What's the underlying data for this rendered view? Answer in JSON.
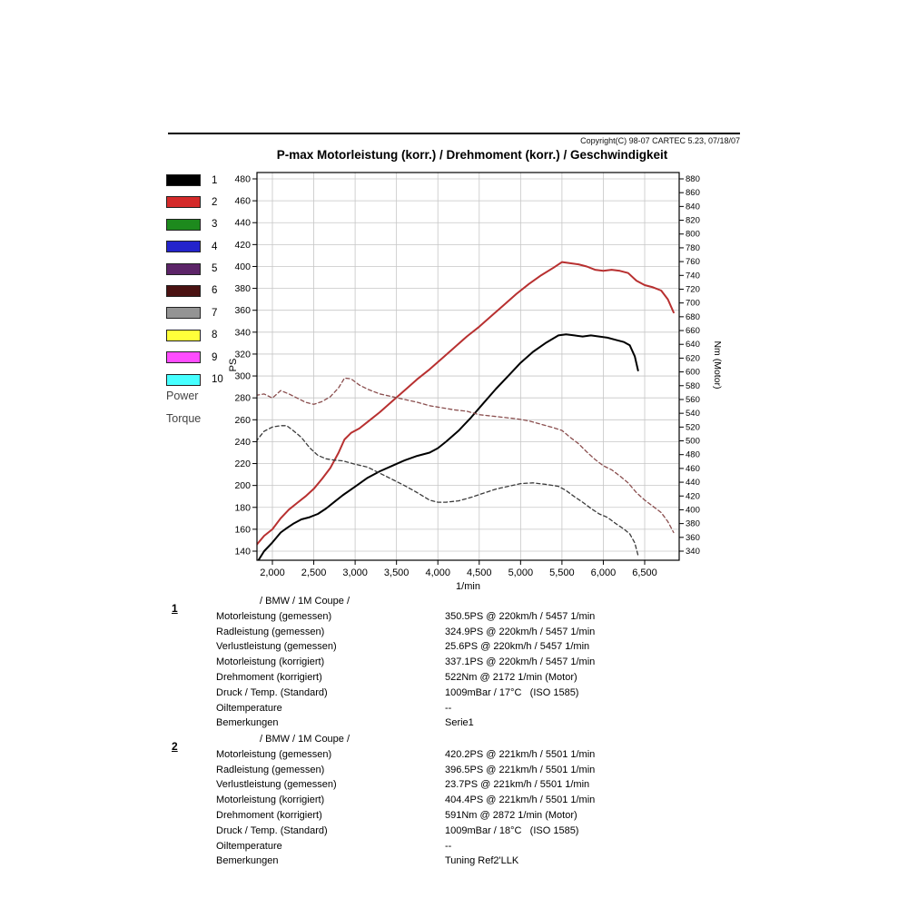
{
  "window": {
    "copyright": "Copyright(C) 98-07 CARTEC 5.23, 07/18/07",
    "title": "P-max Motorleistung (korr.) / Drehmoment (korr.) / Geschwindigkeit"
  },
  "legend": {
    "items": [
      {
        "num": "1",
        "color": "#000000"
      },
      {
        "num": "2",
        "color": "#d42a2a"
      },
      {
        "num": "3",
        "color": "#1d8a1d"
      },
      {
        "num": "4",
        "color": "#2424cc"
      },
      {
        "num": "5",
        "color": "#5c2468",
        "note": ""
      },
      {
        "num": "6",
        "color": "#4a1212"
      },
      {
        "num": "7",
        "color": "#949494"
      },
      {
        "num": "8",
        "color": "#ffff3a"
      },
      {
        "num": "9",
        "color": "#ff4cff"
      },
      {
        "num": "10",
        "color": "#46ffff"
      }
    ],
    "power_label": "Power",
    "torque_label": "Torque"
  },
  "chart_data": {
    "type": "line",
    "title": "P-max Motorleistung (korr.) / Drehmoment (korr.) / Geschwindigkeit",
    "x_axis": {
      "label": "1/min",
      "range": [
        1813,
        6917
      ],
      "ticks": [
        2000,
        2500,
        3000,
        3500,
        4000,
        4500,
        5000,
        5500,
        6000,
        6500
      ],
      "tick_labels": [
        "2,000",
        "2,500",
        "3,000",
        "3,500",
        "4,000",
        "4,500",
        "5,000",
        "5,500",
        "6,000",
        "6,500"
      ]
    },
    "y_left": {
      "label": "PS",
      "min": 140,
      "max": 480,
      "step": 20
    },
    "y_right": {
      "label": "Nm (Motor)",
      "min": 340,
      "max": 880,
      "step": 20
    },
    "grid": true,
    "series": [
      {
        "id": "power-run1",
        "name": "Run 1 Power (korr.)",
        "axis": "left",
        "unit": "PS",
        "color": "#000000",
        "style": "solid",
        "peak": {
          "value": 337.1,
          "rpm": 5457
        },
        "points": [
          [
            1800,
            128
          ],
          [
            1900,
            140
          ],
          [
            2000,
            148
          ],
          [
            2100,
            157
          ],
          [
            2172,
            161
          ],
          [
            2250,
            165
          ],
          [
            2350,
            169
          ],
          [
            2450,
            171
          ],
          [
            2550,
            174
          ],
          [
            2650,
            179
          ],
          [
            2750,
            185
          ],
          [
            2850,
            191
          ],
          [
            3000,
            199
          ],
          [
            3150,
            207
          ],
          [
            3300,
            213
          ],
          [
            3450,
            218
          ],
          [
            3600,
            223
          ],
          [
            3750,
            227
          ],
          [
            3900,
            230
          ],
          [
            4000,
            234
          ],
          [
            4100,
            240
          ],
          [
            4250,
            250
          ],
          [
            4400,
            262
          ],
          [
            4550,
            275
          ],
          [
            4700,
            288
          ],
          [
            4850,
            300
          ],
          [
            5000,
            312
          ],
          [
            5150,
            322
          ],
          [
            5300,
            330
          ],
          [
            5457,
            337
          ],
          [
            5550,
            338
          ],
          [
            5650,
            337
          ],
          [
            5750,
            336
          ],
          [
            5850,
            337
          ],
          [
            5950,
            336
          ],
          [
            6050,
            335
          ],
          [
            6150,
            333
          ],
          [
            6250,
            331
          ],
          [
            6320,
            328
          ],
          [
            6380,
            318
          ],
          [
            6420,
            305
          ]
        ]
      },
      {
        "id": "power-run2",
        "name": "Run 2 Power (korr.)",
        "axis": "left",
        "unit": "PS",
        "color": "#b83030",
        "style": "solid",
        "peak": {
          "value": 404.4,
          "rpm": 5501
        },
        "points": [
          [
            1800,
            145
          ],
          [
            1900,
            154
          ],
          [
            2000,
            160
          ],
          [
            2100,
            170
          ],
          [
            2200,
            178
          ],
          [
            2300,
            184
          ],
          [
            2400,
            190
          ],
          [
            2500,
            197
          ],
          [
            2600,
            206
          ],
          [
            2700,
            216
          ],
          [
            2800,
            230
          ],
          [
            2872,
            242
          ],
          [
            2950,
            248
          ],
          [
            3050,
            252
          ],
          [
            3150,
            258
          ],
          [
            3300,
            267
          ],
          [
            3450,
            277
          ],
          [
            3600,
            287
          ],
          [
            3750,
            297
          ],
          [
            3900,
            306
          ],
          [
            4050,
            316
          ],
          [
            4200,
            326
          ],
          [
            4350,
            336
          ],
          [
            4500,
            345
          ],
          [
            4650,
            355
          ],
          [
            4800,
            365
          ],
          [
            4950,
            375
          ],
          [
            5100,
            384
          ],
          [
            5250,
            392
          ],
          [
            5400,
            399
          ],
          [
            5501,
            404
          ],
          [
            5600,
            403
          ],
          [
            5700,
            402
          ],
          [
            5800,
            400
          ],
          [
            5900,
            397
          ],
          [
            6000,
            396
          ],
          [
            6100,
            397
          ],
          [
            6200,
            396
          ],
          [
            6300,
            394
          ],
          [
            6400,
            387
          ],
          [
            6500,
            383
          ],
          [
            6600,
            381
          ],
          [
            6700,
            378
          ],
          [
            6780,
            370
          ],
          [
            6850,
            358
          ]
        ]
      },
      {
        "id": "torque-run1",
        "name": "Run 1 Torque (korr.)",
        "axis": "right",
        "unit": "Nm",
        "color": "#3a3a3a",
        "style": "dashed",
        "peak": {
          "value": 522,
          "rpm": 2172
        },
        "points": [
          [
            1800,
            499
          ],
          [
            1900,
            514
          ],
          [
            2000,
            520
          ],
          [
            2100,
            522
          ],
          [
            2172,
            522
          ],
          [
            2250,
            515
          ],
          [
            2350,
            505
          ],
          [
            2450,
            490
          ],
          [
            2550,
            479
          ],
          [
            2650,
            474
          ],
          [
            2750,
            472
          ],
          [
            2850,
            471
          ],
          [
            3000,
            466
          ],
          [
            3150,
            462
          ],
          [
            3300,
            453
          ],
          [
            3450,
            444
          ],
          [
            3600,
            435
          ],
          [
            3750,
            425
          ],
          [
            3900,
            414
          ],
          [
            4000,
            411
          ],
          [
            4100,
            411
          ],
          [
            4250,
            413
          ],
          [
            4400,
            418
          ],
          [
            4550,
            424
          ],
          [
            4700,
            430
          ],
          [
            4850,
            434
          ],
          [
            5000,
            438
          ],
          [
            5150,
            439
          ],
          [
            5300,
            437
          ],
          [
            5457,
            434
          ],
          [
            5550,
            428
          ],
          [
            5650,
            419
          ],
          [
            5750,
            411
          ],
          [
            5850,
            402
          ],
          [
            5950,
            394
          ],
          [
            6050,
            389
          ],
          [
            6150,
            380
          ],
          [
            6250,
            372
          ],
          [
            6320,
            365
          ],
          [
            6380,
            352
          ],
          [
            6420,
            334
          ]
        ]
      },
      {
        "id": "torque-run2",
        "name": "Run 2 Torque (korr.)",
        "axis": "right",
        "unit": "Nm",
        "color": "#8a4e4e",
        "style": "dashed",
        "peak": {
          "value": 591,
          "rpm": 2872
        },
        "points": [
          [
            1800,
            566
          ],
          [
            1900,
            568
          ],
          [
            2000,
            562
          ],
          [
            2100,
            573
          ],
          [
            2200,
            568
          ],
          [
            2300,
            562
          ],
          [
            2400,
            556
          ],
          [
            2500,
            553
          ],
          [
            2600,
            557
          ],
          [
            2700,
            564
          ],
          [
            2800,
            577
          ],
          [
            2872,
            591
          ],
          [
            2950,
            590
          ],
          [
            3050,
            581
          ],
          [
            3150,
            575
          ],
          [
            3300,
            568
          ],
          [
            3450,
            564
          ],
          [
            3600,
            560
          ],
          [
            3750,
            556
          ],
          [
            3900,
            551
          ],
          [
            4050,
            548
          ],
          [
            4200,
            545
          ],
          [
            4350,
            543
          ],
          [
            4500,
            538
          ],
          [
            4650,
            536
          ],
          [
            4800,
            534
          ],
          [
            4950,
            532
          ],
          [
            5100,
            529
          ],
          [
            5250,
            524
          ],
          [
            5400,
            519
          ],
          [
            5501,
            515
          ],
          [
            5600,
            505
          ],
          [
            5700,
            496
          ],
          [
            5800,
            484
          ],
          [
            5900,
            473
          ],
          [
            6000,
            464
          ],
          [
            6100,
            458
          ],
          [
            6200,
            449
          ],
          [
            6300,
            439
          ],
          [
            6400,
            425
          ],
          [
            6500,
            414
          ],
          [
            6600,
            405
          ],
          [
            6700,
            396
          ],
          [
            6780,
            383
          ],
          [
            6850,
            367
          ]
        ]
      }
    ]
  },
  "results": {
    "runs": [
      {
        "num": "1",
        "header": "/ BMW / 1M Coupe /",
        "rows": [
          {
            "label": "Motorleistung (gemessen)",
            "value": "350.5PS @ 220km/h / 5457 1/min"
          },
          {
            "label": "Radleistung (gemessen)",
            "value": "324.9PS @ 220km/h / 5457 1/min"
          },
          {
            "label": "Verlustleistung (gemessen)",
            "value": "25.6PS @ 220km/h / 5457 1/min"
          },
          {
            "label": "Motorleistung (korrigiert)",
            "value": "337.1PS @ 220km/h / 5457 1/min"
          },
          {
            "label": "Drehmoment (korrigiert)",
            "value": "522Nm @ 2172 1/min (Motor)"
          },
          {
            "label": "Druck / Temp. (Standard)",
            "value": "1009mBar / 17°C   (ISO 1585)"
          },
          {
            "label": "Oiltemperature",
            "value": "--"
          },
          {
            "label": "Bemerkungen",
            "value": "Serie1"
          }
        ]
      },
      {
        "num": "2",
        "header": "/ BMW / 1M Coupe /",
        "rows": [
          {
            "label": "Motorleistung (gemessen)",
            "value": "420.2PS @ 221km/h / 5501 1/min"
          },
          {
            "label": "Radleistung (gemessen)",
            "value": "396.5PS @ 221km/h / 5501 1/min"
          },
          {
            "label": "Verlustleistung (gemessen)",
            "value": "23.7PS @ 221km/h / 5501 1/min"
          },
          {
            "label": "Motorleistung (korrigiert)",
            "value": "404.4PS @ 221km/h / 5501 1/min"
          },
          {
            "label": "Drehmoment (korrigiert)",
            "value": "591Nm @ 2872 1/min (Motor)"
          },
          {
            "label": "Druck / Temp. (Standard)",
            "value": "1009mBar / 18°C   (ISO 1585)"
          },
          {
            "label": "Oiltemperature",
            "value": "--"
          },
          {
            "label": "Bemerkungen",
            "value": "Tuning Ref2'LLK"
          }
        ]
      }
    ]
  }
}
